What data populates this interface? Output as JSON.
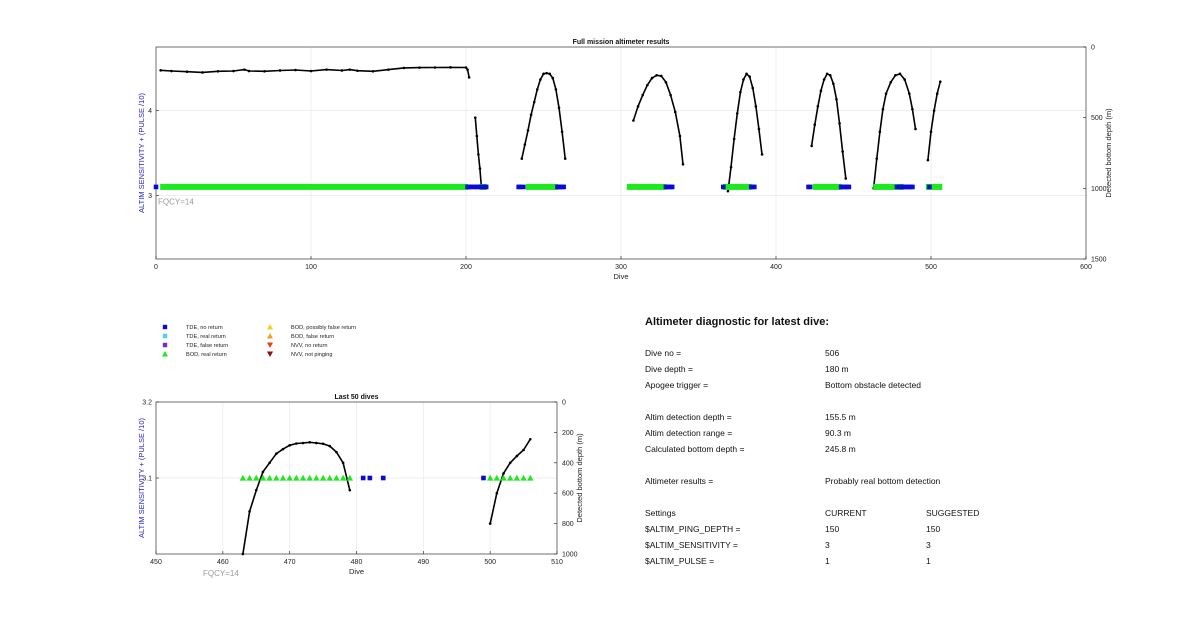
{
  "chart_data": [
    {
      "type": "line",
      "title": "Full mission altimeter results",
      "xlabel": "Dive",
      "ylabel_left": "ALTIM SENSITIVITY + (PULSE /10)",
      "ylabel_right": "Detected bottom depth (m)",
      "xlim": [
        0,
        600
      ],
      "x_ticks": [
        "0",
        "100",
        "200",
        "300",
        "400",
        "500",
        "600"
      ],
      "ylim_left": [
        2.25,
        4.75
      ],
      "y_left_ticks": [
        "4",
        "3"
      ],
      "ylim_right": [
        0,
        1500
      ],
      "y_right_ticks": [
        "0",
        "500",
        "1000",
        "1500"
      ],
      "right_axis_reversed": true,
      "grid": true,
      "annotation": "FQCY=14",
      "series": [
        {
          "name": "Detected bottom depth",
          "axis": "right",
          "segments": [
            [
              [
                3,
                165
              ],
              [
                10,
                170
              ],
              [
                20,
                175
              ],
              [
                30,
                180
              ],
              [
                40,
                172
              ],
              [
                50,
                170
              ],
              [
                57,
                160
              ],
              [
                60,
                170
              ],
              [
                70,
                172
              ],
              [
                80,
                166
              ],
              [
                90,
                163
              ],
              [
                100,
                170
              ],
              [
                110,
                160
              ],
              [
                120,
                166
              ],
              [
                125,
                160
              ],
              [
                130,
                168
              ],
              [
                140,
                172
              ],
              [
                150,
                160
              ],
              [
                160,
                148
              ],
              [
                170,
                146
              ],
              [
                180,
                145
              ],
              [
                190,
                144
              ],
              [
                200,
                145
              ],
              [
                201,
                160
              ],
              [
                202,
                215
              ]
            ],
            [
              [
                206,
                500
              ],
              [
                207,
                630
              ],
              [
                208,
                760
              ],
              [
                209,
                860
              ],
              [
                210,
                1000
              ]
            ],
            [
              [
                236,
                790
              ],
              [
                238,
                690
              ],
              [
                240,
                590
              ],
              [
                242,
                480
              ],
              [
                244,
                390
              ],
              [
                246,
                300
              ],
              [
                248,
                230
              ],
              [
                250,
                190
              ],
              [
                252,
                185
              ],
              [
                254,
                190
              ],
              [
                256,
                220
              ],
              [
                258,
                300
              ],
              [
                260,
                430
              ],
              [
                262,
                600
              ],
              [
                264,
                790
              ]
            ],
            [
              [
                308,
                520
              ],
              [
                311,
                420
              ],
              [
                314,
                340
              ],
              [
                317,
                270
              ],
              [
                320,
                220
              ],
              [
                323,
                200
              ],
              [
                326,
                205
              ],
              [
                329,
                250
              ],
              [
                332,
                340
              ],
              [
                335,
                460
              ],
              [
                338,
                630
              ],
              [
                340,
                830
              ]
            ],
            [
              [
                369,
                1020
              ],
              [
                371,
                850
              ],
              [
                373,
                650
              ],
              [
                375,
                470
              ],
              [
                377,
                320
              ],
              [
                379,
                230
              ],
              [
                381,
                190
              ],
              [
                383,
                210
              ],
              [
                385,
                290
              ],
              [
                387,
                420
              ],
              [
                389,
                580
              ],
              [
                391,
                760
              ]
            ],
            [
              [
                423,
                700
              ],
              [
                425,
                550
              ],
              [
                427,
                420
              ],
              [
                429,
                310
              ],
              [
                431,
                230
              ],
              [
                433,
                190
              ],
              [
                435,
                200
              ],
              [
                437,
                260
              ],
              [
                439,
                370
              ],
              [
                441,
                540
              ],
              [
                443,
                740
              ],
              [
                445,
                930
              ]
            ],
            [
              [
                463,
                1000
              ],
              [
                465,
                790
              ],
              [
                467,
                600
              ],
              [
                469,
                440
              ],
              [
                471,
                330
              ],
              [
                474,
                250
              ],
              [
                477,
                200
              ],
              [
                480,
                190
              ],
              [
                483,
                230
              ],
              [
                486,
                330
              ],
              [
                488,
                440
              ],
              [
                490,
                580
              ]
            ],
            [
              [
                498,
                800
              ],
              [
                500,
                600
              ],
              [
                502,
                450
              ],
              [
                504,
                330
              ],
              [
                506,
                245
              ]
            ]
          ]
        },
        {
          "name": "BOD, real return",
          "axis": "left",
          "y": 3.1,
          "x_ranges": [
            [
              4,
              200
            ],
            [
              210,
              212
            ],
            [
              240,
              258
            ],
            [
              305,
              328
            ],
            [
              367,
              383
            ],
            [
              425,
              441
            ],
            [
              464,
              481
            ],
            [
              498,
              506
            ]
          ]
        },
        {
          "name": "TDE, no return",
          "axis": "left",
          "y": 3.1,
          "x": [
            0,
            201,
            202,
            203,
            204,
            206,
            207,
            209,
            210,
            211,
            212,
            213,
            234,
            235,
            237,
            259,
            260,
            261,
            262,
            263,
            329,
            330,
            331,
            332,
            333,
            366,
            384,
            385,
            386,
            421,
            422,
            442,
            443,
            444,
            445,
            446,
            447,
            478,
            480,
            481,
            482,
            483,
            484,
            485,
            486,
            487,
            488,
            499
          ]
        }
      ]
    },
    {
      "type": "line",
      "title": "Last 50 dives",
      "xlabel": "Dive",
      "ylabel_left": "ALTIM SENSITIVITY + (PULSE /10)",
      "ylabel_right": "Detected bottom depth (m)",
      "xlim": [
        450,
        510
      ],
      "x_ticks": [
        "450",
        "460",
        "470",
        "480",
        "490",
        "500",
        "510"
      ],
      "ylim_left": [
        3.0,
        3.2
      ],
      "y_left_ticks": [
        "3.2",
        "3.1"
      ],
      "ylim_right": [
        0,
        1000
      ],
      "y_right_ticks": [
        "0",
        "200",
        "400",
        "600",
        "800",
        "1000"
      ],
      "right_axis_reversed": true,
      "grid": true,
      "annotation": "FQCY=14",
      "series": [
        {
          "name": "Detected bottom depth",
          "axis": "right",
          "segments": [
            [
              [
                463,
                1000
              ],
              [
                464,
                720
              ],
              [
                465,
                580
              ],
              [
                466,
                460
              ],
              [
                467,
                400
              ],
              [
                468,
                340
              ],
              [
                469,
                310
              ],
              [
                470,
                285
              ],
              [
                471,
                273
              ],
              [
                472,
                270
              ],
              [
                473,
                265
              ],
              [
                474,
                270
              ],
              [
                475,
                275
              ],
              [
                476,
                290
              ],
              [
                477,
                330
              ],
              [
                478,
                400
              ],
              [
                479,
                580
              ]
            ],
            [
              [
                500,
                800
              ],
              [
                501,
                600
              ],
              [
                502,
                470
              ],
              [
                503,
                400
              ],
              [
                504,
                355
              ],
              [
                505,
                315
              ],
              [
                506,
                245
              ]
            ]
          ]
        },
        {
          "name": "BOD, real return",
          "axis": "left",
          "y": 3.1,
          "x": [
            463,
            464,
            465,
            466,
            467,
            468,
            469,
            470,
            471,
            472,
            473,
            474,
            475,
            476,
            477,
            478,
            479,
            500,
            501,
            502,
            503,
            504,
            505,
            506
          ]
        },
        {
          "name": "TDE, no return",
          "axis": "left",
          "y": 3.1,
          "x": [
            481,
            482,
            484,
            499
          ]
        }
      ]
    }
  ],
  "legend": [
    {
      "label": "TDE, no return",
      "symbol": "square",
      "color": "#0a0ad2"
    },
    {
      "label": "TDE, real return",
      "symbol": "square",
      "color": "#4ad6e8"
    },
    {
      "label": "TDE, false return",
      "symbol": "square",
      "color": "#7030c0"
    },
    {
      "label": "BOD, real return",
      "symbol": "triangle-up",
      "color": "#1ee81e"
    },
    {
      "label": "BOD, possibly false return",
      "symbol": "triangle-up",
      "color": "#f2d21a"
    },
    {
      "label": "BOD, false return",
      "symbol": "triangle-up",
      "color": "#f0a020"
    },
    {
      "label": "NVV, no return",
      "symbol": "triangle-down",
      "color": "#e0401a"
    },
    {
      "label": "NVV, not pinging",
      "symbol": "triangle-down",
      "color": "#8a1010"
    }
  ],
  "colors": {
    "depth_line": "#000000",
    "left_axis_label": "#2323c8",
    "annotation": "#9a9a9a",
    "grid": "#e8e8e8"
  },
  "diagnostic": {
    "title": "Altimeter diagnostic for latest dive:",
    "rows": [
      [
        "Dive no =",
        "506",
        ""
      ],
      [
        "Dive depth =",
        "180 m",
        ""
      ],
      [
        "Apogee trigger =",
        "Bottom obstacle detected",
        ""
      ],
      [
        "Altim detection depth =",
        "155.5 m",
        ""
      ],
      [
        "Altim detection range =",
        "90.3 m",
        ""
      ],
      [
        "Calculated bottom depth =",
        "245.8 m",
        ""
      ],
      [
        "Altimeter results =",
        "Probably real bottom detection",
        ""
      ],
      [
        "Settings",
        "CURRENT",
        "SUGGESTED"
      ],
      [
        "$ALTIM_PING_DEPTH =",
        "150",
        "150"
      ],
      [
        "$ALTIM_SENSITIVITY =",
        "3",
        "3"
      ],
      [
        "$ALTIM_PULSE =",
        "1",
        "1"
      ]
    ]
  }
}
